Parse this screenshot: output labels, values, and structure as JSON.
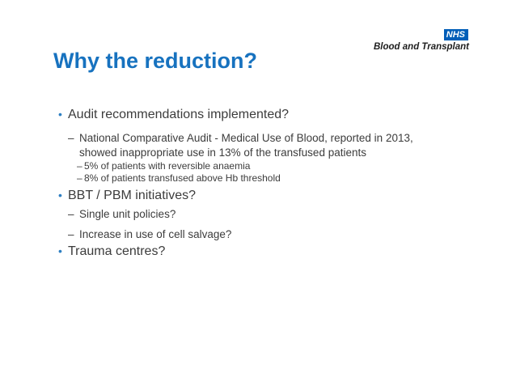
{
  "logo": {
    "nhs_text": "NHS",
    "org_text": "Blood and Transplant"
  },
  "title": "Why the reduction?",
  "bullets": [
    {
      "level": 1,
      "marker": "•",
      "text": "Audit recommendations implemented?"
    },
    {
      "level": 2,
      "marker": "–",
      "lines": [
        "National Comparative Audit - Medical Use of Blood, reported in 2013,",
        "showed inappropriate use in 13% of the transfused patients"
      ]
    },
    {
      "level": 3,
      "marker": "–",
      "text": "5% of patients with reversible anaemia"
    },
    {
      "level": 3,
      "marker": "–",
      "text": "8% of patients transfused above Hb threshold"
    },
    {
      "level": 1,
      "marker": "•",
      "text": "BBT / PBM initiatives?"
    },
    {
      "level": 2,
      "marker": "–",
      "text": "Single unit policies?"
    },
    {
      "level": 2,
      "marker": "–",
      "text": "Increase in use of cell salvage?"
    },
    {
      "level": 1,
      "marker": "•",
      "text": "Trauma centres?"
    }
  ],
  "colors": {
    "nhs_blue": "#005EB8",
    "title_blue": "#1772bf",
    "bullet_blue": "#2e7fc2",
    "body_text": "#3c3c3c",
    "org_text": "#1e1e1e",
    "background": "#ffffff"
  }
}
